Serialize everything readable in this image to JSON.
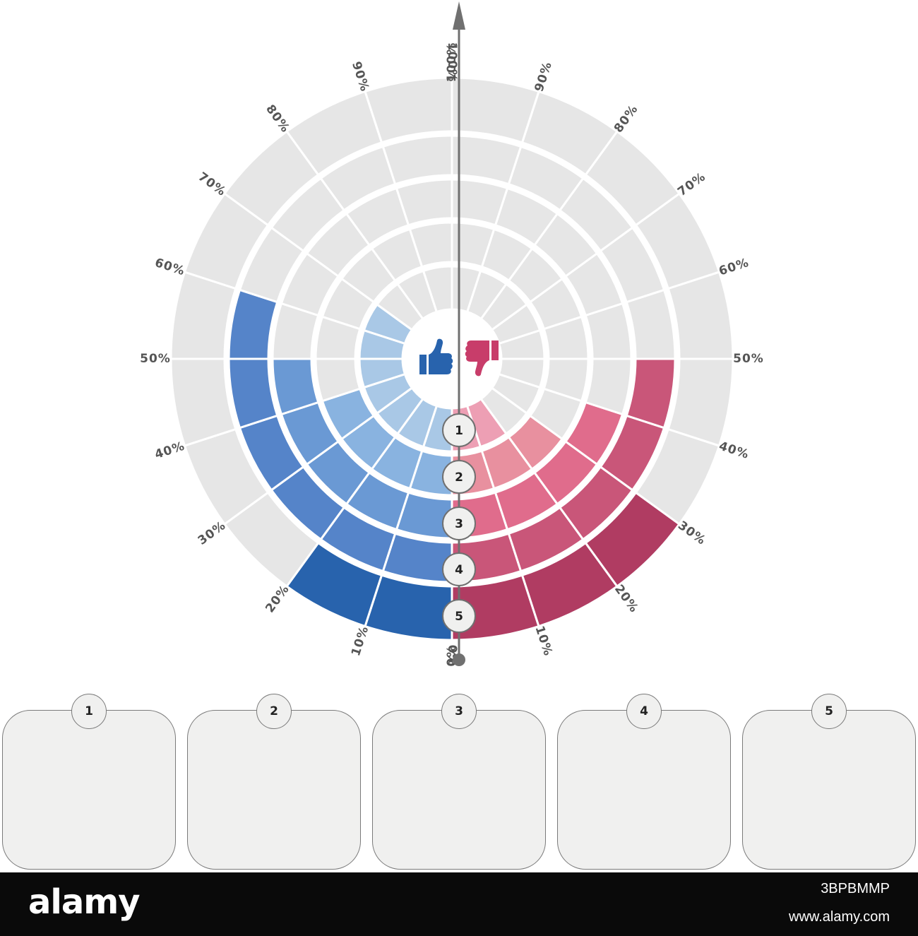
{
  "chart_data": {
    "type": "polar-bar",
    "angle_labels": {
      "left": [
        "0%",
        "10%",
        "20%",
        "30%",
        "40%",
        "50%",
        "60%",
        "70%",
        "80%",
        "90%",
        "100%"
      ],
      "right": [
        "0%",
        "10%",
        "20%",
        "30%",
        "40%",
        "50%",
        "60%",
        "70%",
        "80%",
        "90%",
        "100%"
      ]
    },
    "rings": [
      "1",
      "2",
      "3",
      "4",
      "5"
    ],
    "series": [
      {
        "side": "left",
        "icon": "thumbs-up-icon",
        "values_percent": [
          70,
          40,
          50,
          60,
          20
        ],
        "colors": [
          "#a9c8e6",
          "#89b3e0",
          "#6a99d4",
          "#5584c9",
          "#2863ad"
        ]
      },
      {
        "side": "right",
        "icon": "thumbs-down-icon",
        "values_percent": [
          20,
          30,
          40,
          50,
          30
        ],
        "colors": [
          "#ed9fb4",
          "#e8909f",
          "#e06c8c",
          "#c95679",
          "#b03c62"
        ]
      }
    ],
    "empty_color": "#e6e6e6"
  },
  "cards": [
    {
      "number": "1"
    },
    {
      "number": "2"
    },
    {
      "number": "3"
    },
    {
      "number": "4"
    },
    {
      "number": "5"
    }
  ],
  "footer": {
    "logo": "alamy",
    "image_id": "3BPBMMP",
    "url": "www.alamy.com"
  }
}
